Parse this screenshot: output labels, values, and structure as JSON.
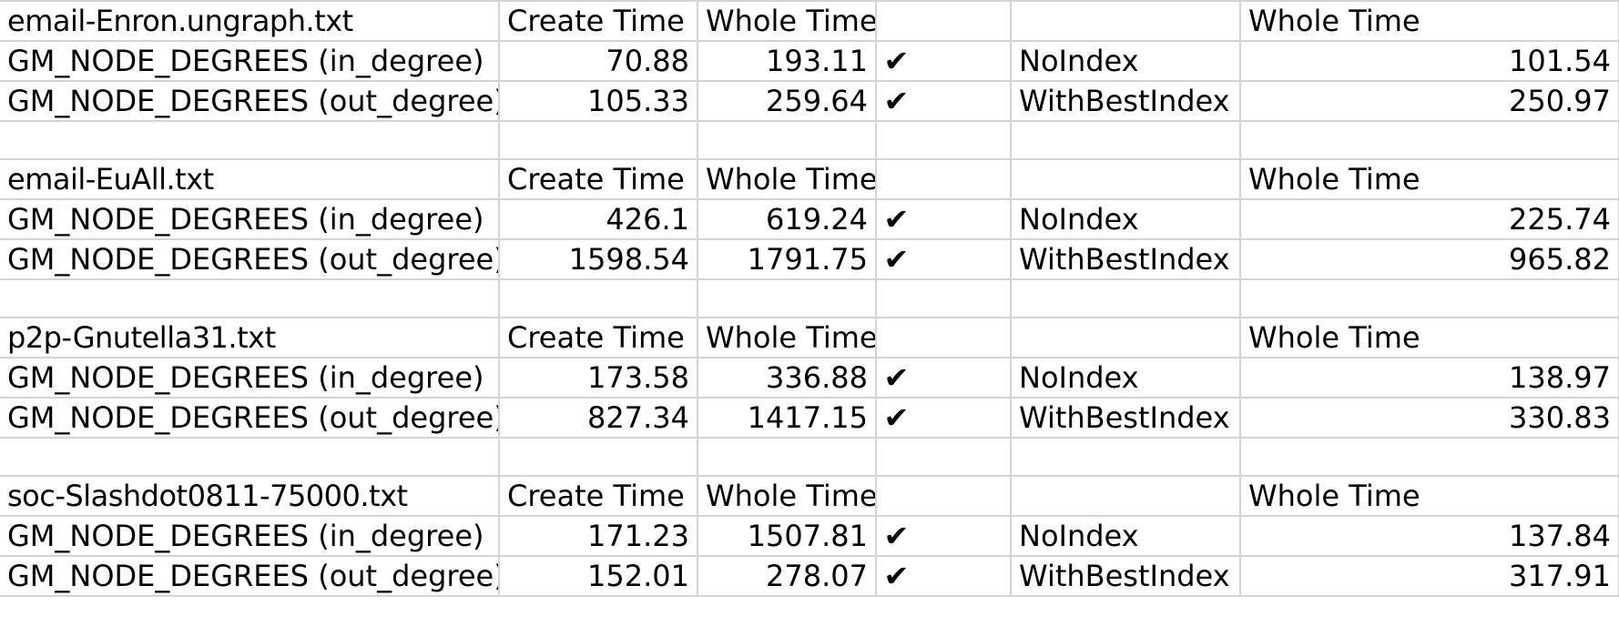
{
  "colors": {
    "filename": "#ff0000",
    "gridline": "#d4d4d4",
    "text": "#000000"
  },
  "headers": {
    "create_time": "Create Time",
    "whole_time": "Whole Time"
  },
  "icons": {
    "check": "heavy-check-mark-icon",
    "check_glyph": "✔"
  },
  "blocks": [
    {
      "filename": "email-Enron.ungraph.txt",
      "rows": [
        {
          "op": "GM_NODE_DEGREES (in_degree)",
          "create": "70.88",
          "whole": "193.11",
          "mode": "NoIndex",
          "whole2": "101.54"
        },
        {
          "op": "GM_NODE_DEGREES (out_degree)",
          "create": "105.33",
          "whole": "259.64",
          "mode": "WithBestIndex",
          "whole2": "250.97"
        }
      ]
    },
    {
      "filename": "email-EuAll.txt",
      "rows": [
        {
          "op": "GM_NODE_DEGREES (in_degree)",
          "create": "426.1",
          "whole": "619.24",
          "mode": "NoIndex",
          "whole2": "225.74"
        },
        {
          "op": "GM_NODE_DEGREES (out_degree)",
          "create": "1598.54",
          "whole": "1791.75",
          "mode": "WithBestIndex",
          "whole2": "965.82"
        }
      ]
    },
    {
      "filename": "p2p-Gnutella31.txt",
      "rows": [
        {
          "op": "GM_NODE_DEGREES (in_degree)",
          "create": "173.58",
          "whole": "336.88",
          "mode": "NoIndex",
          "whole2": "138.97"
        },
        {
          "op": "GM_NODE_DEGREES (out_degree)",
          "create": "827.34",
          "whole": "1417.15",
          "mode": "WithBestIndex",
          "whole2": "330.83"
        }
      ]
    },
    {
      "filename": "soc-Slashdot0811-75000.txt",
      "rows": [
        {
          "op": "GM_NODE_DEGREES (in_degree)",
          "create": "171.23",
          "whole": "1507.81",
          "mode": "NoIndex",
          "whole2": "137.84"
        },
        {
          "op": "GM_NODE_DEGREES (out_degree)",
          "create": "152.01",
          "whole": "278.07",
          "mode": "WithBestIndex",
          "whole2": "317.91"
        }
      ]
    }
  ]
}
